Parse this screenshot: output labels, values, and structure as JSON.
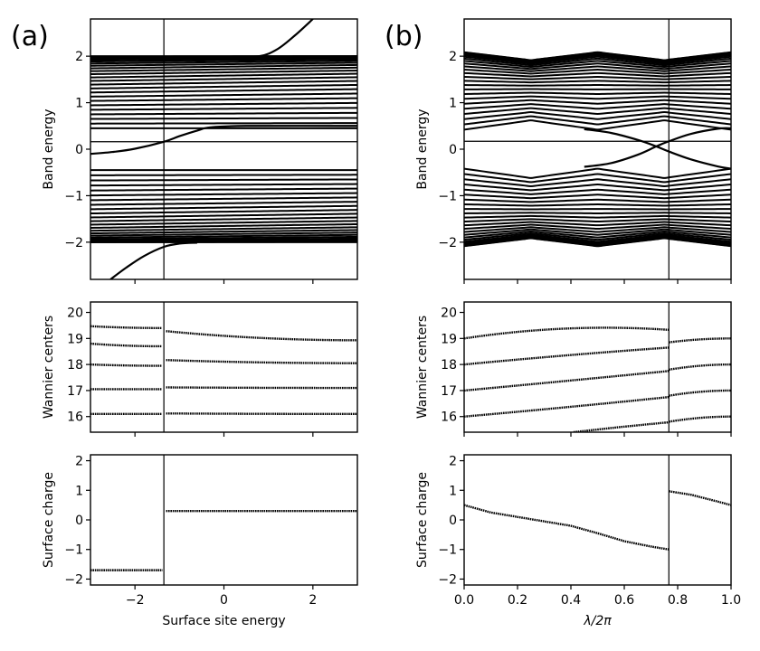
{
  "figure": {
    "panel_labels": [
      "(a)",
      "(b)"
    ]
  },
  "chart_data": [
    {
      "id": "a-band",
      "panel": "(a)",
      "type": "line",
      "title": "",
      "xlabel": "",
      "ylabel": "Band energy",
      "xlim": [
        -3,
        3
      ],
      "ylim": [
        -2.8,
        2.8
      ],
      "xticks": [
        -2,
        0,
        2
      ],
      "xtick_labels_visible": false,
      "yticks": [
        -2,
        -1,
        0,
        1,
        2
      ],
      "ytick_labels": [
        "−2",
        "−1",
        "0",
        "1",
        "2"
      ],
      "grid": false,
      "vline": -1.35,
      "hline": 0.16,
      "bulk_bands": {
        "upper": {
          "min": 0.45,
          "max": 2.0,
          "count": 24,
          "note": "dense flat bands, slight upward drift with x"
        },
        "lower": {
          "min": -2.0,
          "max": -0.45,
          "count": 24,
          "note": "dense flat bands, slight upward drift with x"
        }
      },
      "series": [
        {
          "name": "surface state (in-gap)",
          "x": [
            -3,
            -2.5,
            -2,
            -1.35,
            -1.0,
            -0.6,
            -0.3,
            0.5,
            3
          ],
          "y": [
            -0.1,
            -0.06,
            0.01,
            0.16,
            0.28,
            0.4,
            0.47,
            0.5,
            0.5
          ]
        },
        {
          "name": "surface state (above band)",
          "x": [
            0.2,
            0.8,
            1.2,
            1.6,
            2.0
          ],
          "y": [
            1.99,
            2.0,
            2.15,
            2.45,
            2.8
          ]
        },
        {
          "name": "surface state (below band)",
          "x": [
            -2.55,
            -2.2,
            -1.8,
            -1.35,
            -1.0,
            -0.6
          ],
          "y": [
            -2.8,
            -2.55,
            -2.3,
            -2.1,
            -2.03,
            -2.01
          ]
        }
      ]
    },
    {
      "id": "b-band",
      "panel": "(b)",
      "type": "line",
      "title": "",
      "xlabel": "",
      "ylabel": "Band energy",
      "xlim": [
        0,
        1
      ],
      "ylim": [
        -2.8,
        2.8
      ],
      "xticks": [
        0,
        0.2,
        0.4,
        0.6,
        0.8,
        1.0
      ],
      "xtick_labels_visible": false,
      "yticks": [
        -2,
        -1,
        0,
        1,
        2
      ],
      "ytick_labels": [
        "−2",
        "−1",
        "0",
        "1",
        "2"
      ],
      "grid": false,
      "vline": 0.767,
      "hline": 0.17,
      "bulk_bands": {
        "upper": {
          "edge_x": [
            0,
            0.25,
            0.5,
            0.75,
            1.0
          ],
          "edge_y": [
            0.42,
            0.62,
            0.42,
            0.62,
            0.42
          ],
          "max": 2.0,
          "count": 24
        },
        "lower": {
          "edge_x": [
            0,
            0.25,
            0.5,
            0.75,
            1.0
          ],
          "edge_y": [
            -0.42,
            -0.62,
            -0.42,
            -0.62,
            -0.42
          ],
          "min": -2.0,
          "count": 24
        }
      },
      "series": [
        {
          "name": "surface state descending",
          "x": [
            0.45,
            0.55,
            0.65,
            0.72,
            0.767,
            0.85,
            0.95,
            1.0
          ],
          "y": [
            0.43,
            0.35,
            0.2,
            0.06,
            -0.05,
            -0.22,
            -0.37,
            -0.42
          ]
        },
        {
          "name": "surface state ascending",
          "x": [
            0.45,
            0.55,
            0.65,
            0.72,
            0.767,
            0.85,
            0.95,
            1.0
          ],
          "y": [
            -0.38,
            -0.3,
            -0.12,
            0.06,
            0.17,
            0.33,
            0.44,
            0.45
          ]
        }
      ]
    },
    {
      "id": "a-wannier",
      "panel": "(a)",
      "type": "scatter",
      "ylabel": "Wannier centers",
      "xlim": [
        -3,
        3
      ],
      "ylim": [
        15.4,
        20.4
      ],
      "xticks": [
        -2,
        0,
        2
      ],
      "xtick_labels_visible": false,
      "yticks": [
        16,
        17,
        18,
        19,
        20
      ],
      "ytick_labels": [
        "16",
        "17",
        "18",
        "19",
        "20"
      ],
      "grid": false,
      "vline": -1.35,
      "series": [
        {
          "segment": "left",
          "x": [
            -3,
            -1.4
          ],
          "lines": [
            [
              19.47,
              19.4
            ],
            [
              18.8,
              18.7
            ],
            [
              18.0,
              17.95
            ],
            [
              17.05,
              17.05
            ],
            [
              16.1,
              16.1
            ]
          ]
        },
        {
          "segment": "right",
          "x": [
            -1.3,
            3
          ],
          "lines": [
            [
              19.28,
              18.93
            ],
            [
              18.17,
              18.05
            ],
            [
              17.12,
              17.1
            ],
            [
              16.12,
              16.1
            ]
          ]
        }
      ]
    },
    {
      "id": "b-wannier",
      "panel": "(b)",
      "type": "scatter",
      "ylabel": "Wannier centers",
      "xlim": [
        0,
        1
      ],
      "ylim": [
        15.4,
        20.4
      ],
      "xticks": [
        0,
        0.2,
        0.4,
        0.6,
        0.8,
        1.0
      ],
      "xtick_labels_visible": false,
      "yticks": [
        16,
        17,
        18,
        19,
        20
      ],
      "ytick_labels": [
        "16",
        "17",
        "18",
        "19",
        "20"
      ],
      "grid": false,
      "vline": 0.767,
      "series": [
        {
          "segment": "left",
          "x": [
            0,
            0.767
          ],
          "lines": [
            [
              19.0,
              19.33,
              19.38
            ],
            [
              18.0,
              18.65,
              18.35
            ],
            [
              17.0,
              17.75,
              17.37
            ],
            [
              16.0,
              16.75,
              16.36
            ]
          ]
        },
        {
          "segment": "left-lower",
          "x": [
            0.41,
            0.767
          ],
          "lines": [
            [
              15.4,
              15.78,
              15.6
            ]
          ]
        },
        {
          "segment": "right",
          "x": [
            0.767,
            1.0
          ],
          "lines": [
            [
              18.85,
              19.0
            ],
            [
              17.8,
              18.0
            ],
            [
              16.8,
              17.0
            ],
            [
              15.8,
              16.0
            ]
          ]
        }
      ]
    },
    {
      "id": "a-charge",
      "panel": "(a)",
      "type": "scatter",
      "xlabel": "Surface site energy",
      "ylabel": "Surface charge",
      "xlim": [
        -3,
        3
      ],
      "ylim": [
        -2.2,
        2.2
      ],
      "xticks": [
        -2,
        0,
        2
      ],
      "xtick_labels": [
        "−2",
        "0",
        "2"
      ],
      "yticks": [
        -2,
        -1,
        0,
        1,
        2
      ],
      "ytick_labels": [
        "−2",
        "−1",
        "0",
        "1",
        "2"
      ],
      "grid": false,
      "vline": -1.35,
      "series": [
        {
          "segment": "left",
          "x": [
            -3,
            -1.38
          ],
          "y": [
            -1.7,
            -1.7
          ]
        },
        {
          "segment": "right",
          "x": [
            -1.3,
            3
          ],
          "y": [
            0.3,
            0.3
          ]
        }
      ]
    },
    {
      "id": "b-charge",
      "panel": "(b)",
      "type": "scatter",
      "xlabel": "λ/2π",
      "ylabel": "Surface charge",
      "xlim": [
        0,
        1
      ],
      "ylim": [
        -2.2,
        2.2
      ],
      "xticks": [
        0,
        0.2,
        0.4,
        0.6,
        0.8,
        1.0
      ],
      "xtick_labels": [
        "0.0",
        "0.2",
        "0.4",
        "0.6",
        "0.8",
        "1.0"
      ],
      "yticks": [
        -2,
        -1,
        0,
        1,
        2
      ],
      "ytick_labels": [
        "−2",
        "−1",
        "0",
        "1",
        "2"
      ],
      "grid": false,
      "vline": 0.767,
      "series": [
        {
          "segment": "left",
          "x": [
            0,
            0.1,
            0.2,
            0.3,
            0.4,
            0.5,
            0.6,
            0.7,
            0.767
          ],
          "y": [
            0.5,
            0.25,
            0.1,
            -0.05,
            -0.2,
            -0.45,
            -0.72,
            -0.9,
            -1.0
          ]
        },
        {
          "segment": "right",
          "x": [
            0.767,
            0.85,
            0.95,
            1.0
          ],
          "y": [
            0.97,
            0.85,
            0.62,
            0.5
          ]
        }
      ]
    }
  ]
}
